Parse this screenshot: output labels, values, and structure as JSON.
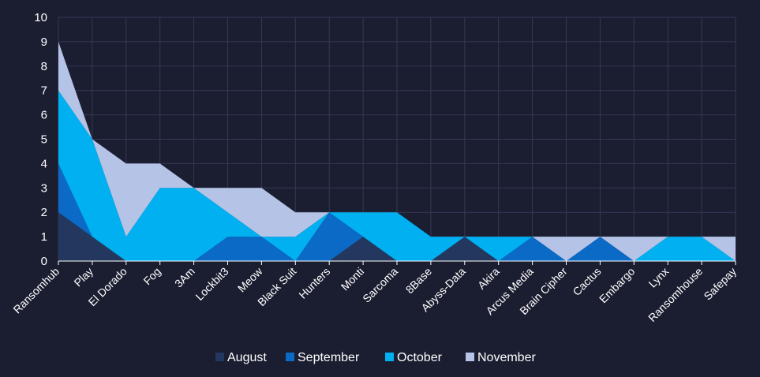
{
  "chart_data": {
    "type": "area",
    "stacked": true,
    "title": "",
    "xlabel": "",
    "ylabel": "",
    "ylim": [
      0,
      10
    ],
    "yticks": [
      0,
      1,
      2,
      3,
      4,
      5,
      6,
      7,
      8,
      9,
      10
    ],
    "grid": true,
    "legend_position": "bottom",
    "categories": [
      "Ransomhub",
      "Play",
      "El Dorado",
      "Fog",
      "3Am",
      "Lockbit3",
      "Meow",
      "Black Suit",
      "Hunters",
      "Monti",
      "Sarcoma",
      "8Base",
      "Abyss-Data",
      "Akira",
      "Arcus Media",
      "Brain Cipher",
      "Cactus",
      "Embargo",
      "Lynx",
      "Ransomhouse",
      "Safepay"
    ],
    "series": [
      {
        "name": "August",
        "color": "#23375f",
        "values": [
          2,
          1,
          0,
          0,
          0,
          0,
          0,
          0,
          0,
          1,
          0,
          0,
          1,
          0,
          0,
          0,
          0,
          0,
          0,
          0,
          0
        ]
      },
      {
        "name": "September",
        "color": "#0a6ac5",
        "values": [
          2,
          0,
          0,
          0,
          0,
          1,
          1,
          0,
          2,
          0,
          0,
          0,
          0,
          0,
          1,
          0,
          1,
          0,
          0,
          0,
          0
        ]
      },
      {
        "name": "October",
        "color": "#00b0f0",
        "values": [
          3,
          4,
          1,
          3,
          3,
          1,
          0,
          1,
          0,
          1,
          2,
          1,
          0,
          1,
          0,
          0,
          0,
          0,
          1,
          1,
          0
        ]
      },
      {
        "name": "November",
        "color": "#b4c3e6",
        "values": [
          2,
          0,
          3,
          1,
          0,
          1,
          2,
          1,
          0,
          0,
          0,
          0,
          0,
          0,
          0,
          1,
          0,
          1,
          0,
          0,
          1
        ]
      }
    ],
    "colors": {
      "background": "#1b1d31",
      "grid": "#343955",
      "text": "#ffffff"
    }
  }
}
